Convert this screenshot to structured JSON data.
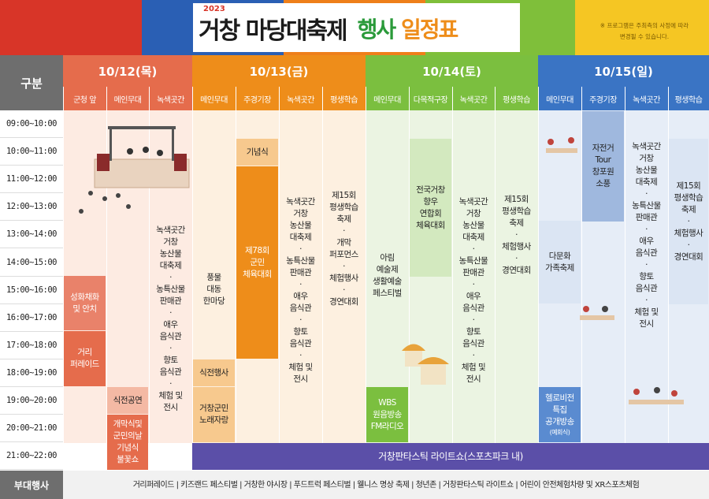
{
  "header": {
    "year": "2023",
    "title_main": "거창 마당대축제",
    "title_sub_a": "행사",
    "title_sub_b": "일정표",
    "note_line1": "※ 프로그램은 주최측의 사정에 따라",
    "note_line2": "변경될 수 있습니다."
  },
  "colors": {
    "red": "#d83528",
    "blue": "#2a5fb4",
    "orange": "#ee7f1a",
    "green": "#7fbf3a",
    "yellow": "#f5c623",
    "day1": "#e56c4c",
    "day2": "#ee8d1a",
    "day3": "#7bbf3f",
    "day4": "#3a74c4"
  },
  "grid": {
    "corner_label": "구분",
    "extra_label": "부대행사",
    "times": [
      "09:00~10:00",
      "10:00~11:00",
      "11:00~12:00",
      "12:00~13:00",
      "13:00~14:00",
      "14:00~15:00",
      "15:00~16:00",
      "16:00~17:00",
      "17:00~18:00",
      "18:00~19:00",
      "19:00~20:00",
      "20:00~21:00",
      "21:00~22:00"
    ],
    "extra_events": "거리퍼레이드 | 키즈랜드 페스티벌 | 거창한 야시장 | 푸드트럭 페스티벌 | 웰니스 명상 축제 | 청년존 | 거창판타스틱 라이트쇼 | 어린이 안전체험차량 및 XR스포츠체험"
  },
  "days": [
    {
      "date": "10/12(목)",
      "venues": [
        "군청 앞",
        "메인무대",
        "녹색곳간"
      ]
    },
    {
      "date": "10/13(금)",
      "venues": [
        "메인무대",
        "주경기장",
        "녹색곳간",
        "평생학습"
      ]
    },
    {
      "date": "10/14(토)",
      "venues": [
        "메인무대",
        "다목적구장",
        "녹색곳간",
        "평생학습"
      ]
    },
    {
      "date": "10/15(일)",
      "venues": [
        "메인무대",
        "주경기장",
        "녹색곳간",
        "평생학습"
      ]
    }
  ],
  "events": {
    "d1_gunchung_1": "성화채화\n및 안치",
    "d1_gunchung_2": "거리\n퍼레이드",
    "d1_main_1": "식전공연",
    "d1_main_2": "개막식및\n군민의날\n기념식\n불꽃쇼",
    "d1_green": "녹색곳간\n거창\n농산물\n대축제\n·\n농특산물\n판매관\n·\n애우\n음식관\n·\n향토\n음식관\n·\n체험 및\n전시",
    "d2_main_1": "풍물\n대동\n한마당",
    "d2_main_2": "식전행사",
    "d2_main_3": "거창군민\n노래자랑",
    "d2_stadium_1": "기념식",
    "d2_stadium_2": "제78회\n군민\n체육대회",
    "d2_green": "녹색곳간\n거창\n농산물\n대축제\n·\n농특산물\n판매관\n·\n애우\n음식관\n·\n향토\n음식관\n·\n체험 및\n전시",
    "d2_learn": "제15회\n평생학습\n축제\n·\n개막\n퍼포먼스\n·\n체험행사\n·\n경연대회",
    "d3_main_1": "아림\n예술제\n생활예술\n페스티벌",
    "d3_main_2": "WBS\n원음방송\nFM라디오",
    "d3_multi": "전국거창\n향우\n연합회\n체육대회",
    "d3_green": "녹색곳간\n거창\n농산물\n대축제\n·\n농특산물\n판매관\n·\n애우\n음식관\n·\n향토\n음식관\n·\n체험 및\n전시",
    "d3_learn": "제15회\n평생학습\n축제\n·\n체험행사\n·\n경연대회",
    "d3_light": "거창판타스틱 라이트쇼(스포츠파크 내)",
    "d4_main_1": "다문화\n가족축제",
    "d4_main_2": "헬로비전\n특집\n공개방송",
    "d4_main_2_note": "(예회식)",
    "d4_stadium": "자전거\nTour\n창포원\n소풍",
    "d4_green": "녹색곳간\n거창\n농산물\n대축제\n·\n농특산물\n판매관\n·\n애우\n음식관\n·\n향토\n음식관\n·\n체험 및\n전시",
    "d4_learn": "제15회\n평생학습\n축제\n·\n체험행사\n·\n경연대회"
  }
}
